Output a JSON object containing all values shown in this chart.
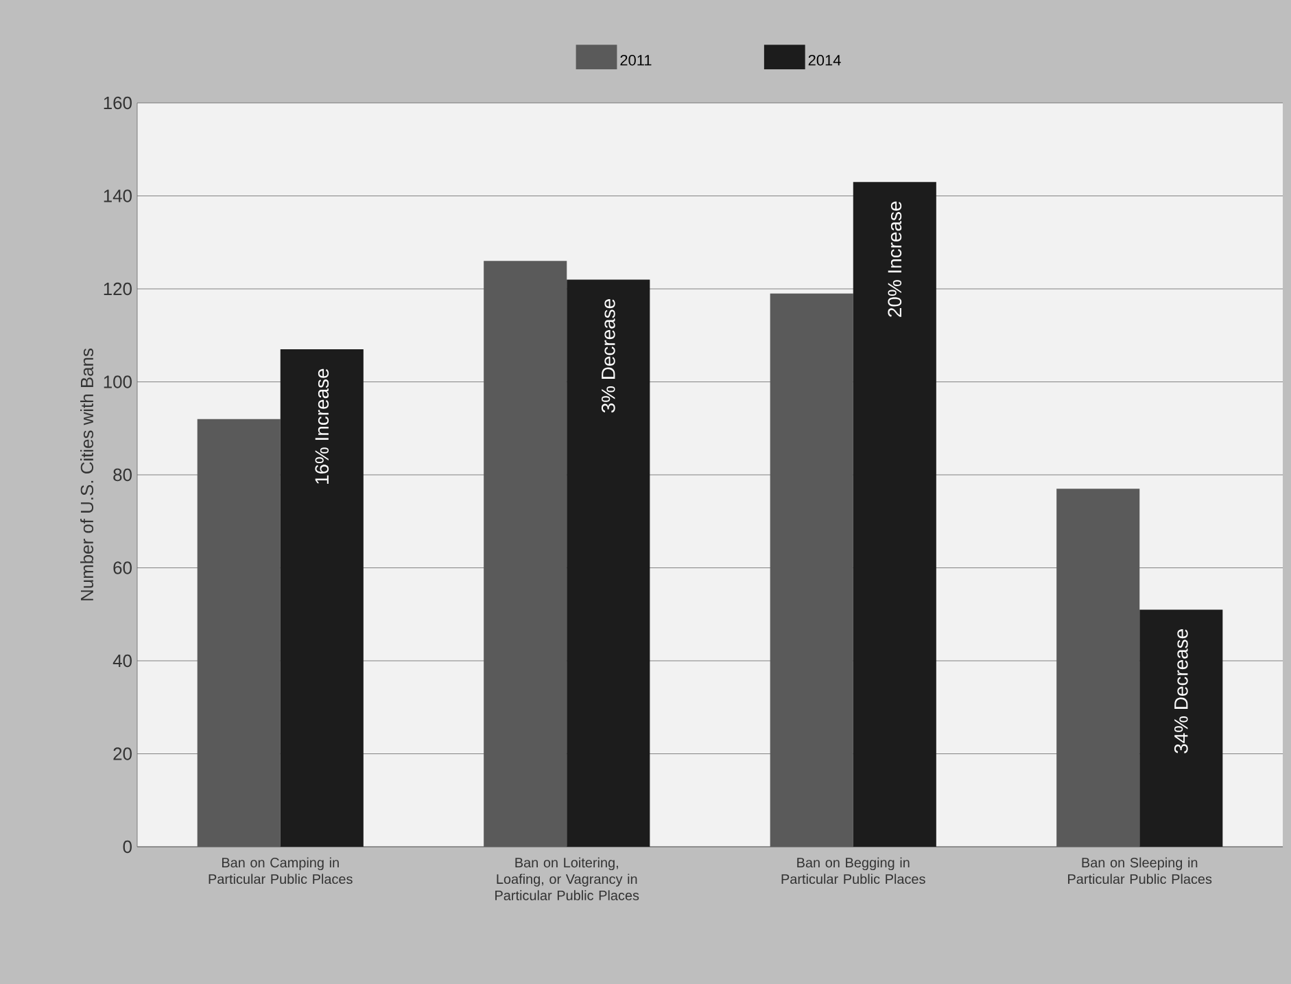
{
  "chart_data": {
    "type": "bar",
    "ylabel": "Number of U.S. Cities with Bans",
    "categories": [
      "Ban on Camping in Particular Public Places",
      "Ban on Loitering, Loafing, or Vagrancy in Particular Public Places",
      "Ban on Begging in Particular Public Places",
      "Ban on Sleeping in Particular Public Places"
    ],
    "series": [
      {
        "name": "2011",
        "color": "#5a5a5a",
        "values": [
          92,
          126,
          119,
          77
        ]
      },
      {
        "name": "2014",
        "color": "#1c1c1c",
        "values": [
          107,
          122,
          143,
          51
        ]
      }
    ],
    "annotations": [
      "16% Increase",
      "3% Decrease",
      "20% Increase",
      "34% Decrease"
    ],
    "ylim": [
      0,
      160
    ],
    "yticks": [
      0,
      20,
      40,
      60,
      80,
      100,
      120,
      140,
      160
    ],
    "grid": "y",
    "legend": "top"
  }
}
